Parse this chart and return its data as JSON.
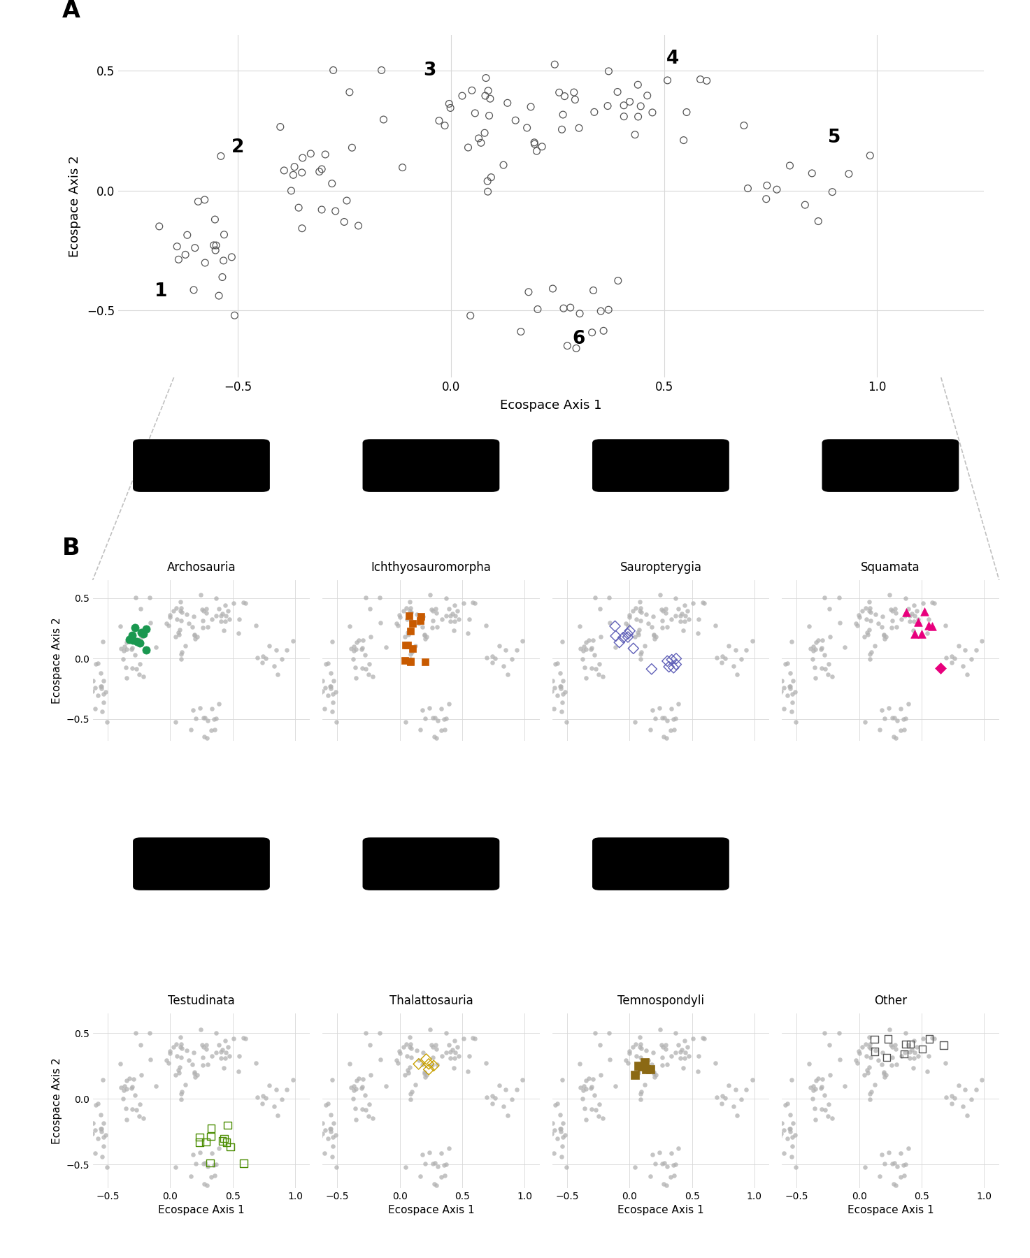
{
  "axis_label_x": "Ecospace Axis 1",
  "axis_label_y": "Ecospace Axis 2",
  "panel_A_label": "A",
  "panel_B_label": "B",
  "subplot_labels_row1": [
    "Archosauria",
    "Ichthyosauromorpha",
    "Sauropterygia",
    "Squamata"
  ],
  "subplot_labels_row2": [
    "Testudinata",
    "Thalattosauria",
    "Temnospondyli",
    "Other"
  ],
  "colors": {
    "archosauria": "#1a9850",
    "ichthyosauromorpha": "#c85a00",
    "sauropterygia": "#6060b8",
    "squamata_tri": "#e8007d",
    "squamata_dia": "#e8007d",
    "testudinata": "#4a8c00",
    "thalattosauria": "#c8a000",
    "temnospondyli": "#8b6914",
    "other": "#555555",
    "background_dot": "#b0b0b0",
    "cluster_hull": "#c0c0c0",
    "open_circle": "#555555",
    "connect_line": "#c0c0c0",
    "grid": "#d8d8d8"
  },
  "panelA_xlim": [
    -0.78,
    1.25
  ],
  "panelA_ylim": [
    -0.78,
    0.65
  ],
  "panelB_xlim": [
    -0.62,
    1.12
  ],
  "panelB_ylim": [
    -0.68,
    0.65
  ],
  "panelA_xticks": [
    -0.5,
    0.0,
    0.5,
    1.0
  ],
  "panelA_yticks": [
    -0.5,
    0.0,
    0.5
  ],
  "panelB_xticks": [
    -0.5,
    0.0,
    0.5,
    1.0
  ],
  "panelB_yticks": [
    -0.5,
    0.0,
    0.5
  ]
}
